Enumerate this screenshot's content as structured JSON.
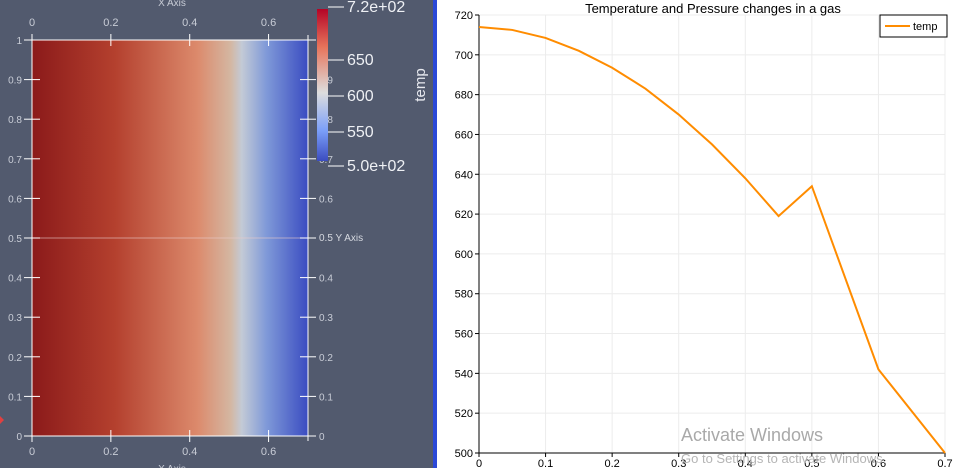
{
  "render_view": {
    "x_axis_title": "X Axis",
    "y_axis_title": "Y Axis",
    "x_ticks": [
      "0",
      "0.2",
      "0.4",
      "0.6"
    ],
    "y_ticks": [
      "0",
      "0.1",
      "0.2",
      "0.3",
      "0.4",
      "0.5",
      "0.6",
      "0.7",
      "0.8",
      "0.9",
      "1"
    ],
    "y_mid_label": "0.5 Y Axis",
    "colorbar": {
      "title": "temp",
      "labels": [
        "7.2e+02",
        "650",
        "600",
        "550",
        "5.0e+02"
      ],
      "colors": [
        "#8b1a1a",
        "#dd7a5e",
        "#dcdcdc",
        "#6f8ee0",
        "#3b4cc0"
      ]
    }
  },
  "chart_data": {
    "type": "line",
    "title": "Temperature and Pressure changes in a gas",
    "xlabel": "",
    "ylabel": "",
    "xlim": [
      0,
      0.7
    ],
    "ylim": [
      500,
      720
    ],
    "x_ticks": [
      "0",
      "0.1",
      "0.2",
      "0.3",
      "0.4",
      "0.5",
      "0.6",
      "0.7"
    ],
    "y_ticks": [
      "500",
      "520",
      "540",
      "560",
      "580",
      "600",
      "620",
      "640",
      "660",
      "680",
      "700",
      "720"
    ],
    "legend": "top-right",
    "grid": true,
    "series": [
      {
        "name": "temp",
        "color": "#ff8c00",
        "x": [
          0,
          0.05,
          0.1,
          0.15,
          0.2,
          0.25,
          0.3,
          0.35,
          0.4,
          0.45,
          0.5,
          0.6,
          0.7
        ],
        "y": [
          714,
          712.5,
          708.5,
          702,
          693.5,
          683,
          670,
          655,
          638,
          619,
          634,
          542,
          500
        ]
      }
    ]
  },
  "watermark": {
    "line1": "Activate Windows",
    "line2": "Go to Settings to activate Windows."
  }
}
